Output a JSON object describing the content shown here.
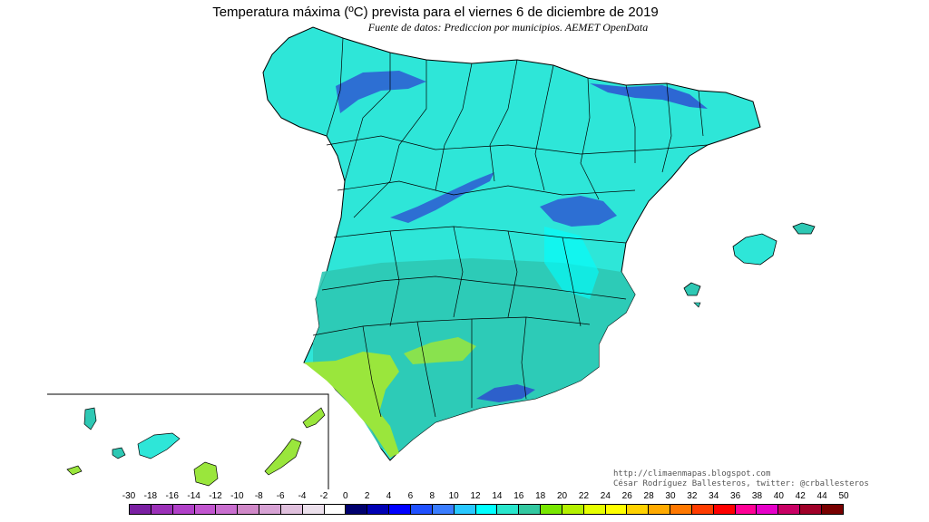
{
  "header": {
    "title": "Temperatura máxima (ºC) prevista para el viernes 6 de diciembre de 2019",
    "subtitle": "Fuente de datos: Prediccion por municipios. AEMET OpenData"
  },
  "credits": {
    "line1": "http://climaenmapas.blogspot.com",
    "line2": "César Rodríguez Ballesteros, twitter: @crballesteros"
  },
  "legend": {
    "labels": [
      "-30",
      "-18",
      "-16",
      "-14",
      "-12",
      "-10",
      "-8",
      "-6",
      "-4",
      "-2",
      "0",
      "2",
      "4",
      "6",
      "8",
      "10",
      "12",
      "14",
      "16",
      "18",
      "20",
      "22",
      "24",
      "26",
      "28",
      "30",
      "32",
      "34",
      "36",
      "38",
      "40",
      "42",
      "44",
      "50"
    ],
    "colors": [
      "#7a1fa2",
      "#9b30b8",
      "#b040c8",
      "#c155cf",
      "#c96ecf",
      "#d088c8",
      "#d7a2d4",
      "#e0c0dd",
      "#ece0ec",
      "#ffffff",
      "#00006e",
      "#0000b4",
      "#0000ff",
      "#2050ff",
      "#3a7dff",
      "#28c8ff",
      "#00ffff",
      "#28e6cc",
      "#32c8a0",
      "#78e600",
      "#b4f000",
      "#e6ff00",
      "#ffff00",
      "#ffd200",
      "#ffaa00",
      "#ff7800",
      "#ff3c00",
      "#ff0000",
      "#ff0096",
      "#e600c8",
      "#c80064",
      "#a00028",
      "#780000"
    ]
  },
  "colors": {
    "sea": "#ffffff",
    "land_main": "#2ee6d8",
    "land_south": "#2ec8b4",
    "warm": "#9ae63c",
    "cold": "#2d3cd2",
    "cyan": "#00ffff"
  }
}
